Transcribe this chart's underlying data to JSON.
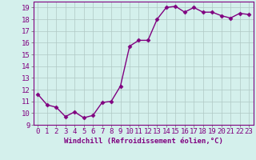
{
  "x": [
    0,
    1,
    2,
    3,
    4,
    5,
    6,
    7,
    8,
    9,
    10,
    11,
    12,
    13,
    14,
    15,
    16,
    17,
    18,
    19,
    20,
    21,
    22,
    23
  ],
  "y": [
    11.6,
    10.7,
    10.5,
    9.7,
    10.1,
    9.6,
    9.8,
    10.9,
    11.0,
    12.3,
    15.7,
    16.2,
    16.2,
    18.0,
    19.0,
    19.1,
    18.6,
    19.0,
    18.6,
    18.6,
    18.3,
    18.1,
    18.5,
    18.4
  ],
  "line_color": "#800080",
  "marker": "D",
  "marker_size": 2.5,
  "bg_color": "#d4f0ec",
  "grid_color": "#b0c8c4",
  "xlabel": "Windchill (Refroidissement éolien,°C)",
  "ylim": [
    9,
    19.5
  ],
  "xlim": [
    -0.5,
    23.5
  ],
  "yticks": [
    9,
    10,
    11,
    12,
    13,
    14,
    15,
    16,
    17,
    18,
    19
  ],
  "xticks": [
    0,
    1,
    2,
    3,
    4,
    5,
    6,
    7,
    8,
    9,
    10,
    11,
    12,
    13,
    14,
    15,
    16,
    17,
    18,
    19,
    20,
    21,
    22,
    23
  ],
  "xlabel_fontsize": 6.5,
  "tick_fontsize": 6.5,
  "line_width": 1.0
}
